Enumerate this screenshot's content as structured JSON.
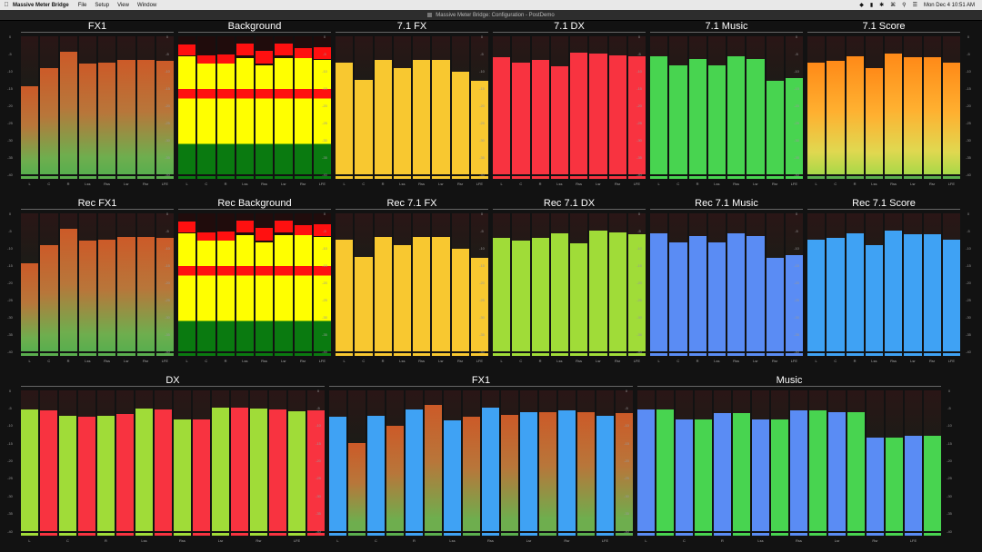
{
  "menubar": {
    "app_name": "Massive Meter Bridge",
    "menus": [
      "File",
      "Setup",
      "View",
      "Window"
    ],
    "date_time": "Mon Dec 4  10:51 AM"
  },
  "window": {
    "title": "Massive Meter Bridge: Configuration - PostDemo"
  },
  "scale_ticks": [
    "0",
    "-5",
    "-10",
    "-15",
    "-20",
    "-25",
    "-30",
    "-35",
    "-40"
  ],
  "channel_labels": [
    "L",
    "C",
    "R",
    "Lss",
    "Rss",
    "Lsr",
    "Rsr",
    "LFE"
  ],
  "colors": {
    "orange": "#cc6030",
    "yellow": "#f8c830",
    "red": "#f83340",
    "green": "#48d450",
    "lime": "#a0dc38",
    "blue": "#3fa2f4",
    "purple_blue": "#5a8cf4",
    "score_orange": "#ff9020"
  },
  "panels": [
    {
      "title": "FX1",
      "style": "fx1",
      "levels": [
        -14.5,
        -9.3,
        -4.6,
        -7.9,
        -7.5,
        -6.9,
        -6.9,
        -7.2
      ],
      "peaks": [
        -14.5,
        -9.3,
        -4.6,
        -7.9,
        -7.5,
        -6.9,
        -6.9,
        -7.2
      ]
    },
    {
      "title": "Background",
      "style": "stripes",
      "levels": [
        -5.9,
        -7.2,
        -7.5,
        -6.2,
        -8.4,
        -6.2,
        -6.2,
        -6.9
      ],
      "peaks": [
        -4.8,
        -7.0,
        -7.0,
        -4.8,
        -7.0,
        -4.8,
        -5.4,
        -5.7
      ]
    },
    {
      "title": "7.1 FX",
      "style": "yellow",
      "levels": [
        -7.6,
        -12.6,
        -6.9,
        -9.1,
        -6.9,
        -6.9,
        -10.2,
        -12.8
      ],
      "peaks": [
        -7.6,
        -12.6,
        -6.9,
        -9.1,
        -6.9,
        -6.9,
        -10.2,
        -12.8
      ]
    },
    {
      "title": "7.1 DX",
      "style": "red",
      "levels": [
        -6.1,
        -7.5,
        -6.9,
        -8.7,
        -4.8,
        -5.0,
        -5.4,
        -5.9
      ],
      "peaks": [
        -6.1,
        -7.5,
        -6.9,
        -8.7,
        -4.8,
        -5.0,
        -5.4,
        -5.9
      ]
    },
    {
      "title": "7.1 Music",
      "style": "green",
      "levels": [
        -5.7,
        -8.4,
        -6.5,
        -8.4,
        -5.9,
        -6.5,
        -12.8,
        -12.0
      ],
      "peaks": [
        -5.7,
        -8.4,
        -6.5,
        -8.4,
        -5.9,
        -6.5,
        -12.8,
        -12.0
      ]
    },
    {
      "title": "7.1 Score",
      "style": "score",
      "levels": [
        -7.6,
        -7.2,
        -5.7,
        -9.1,
        -5.0,
        -6.1,
        -6.1,
        -7.6
      ],
      "peaks": [
        -7.6,
        -7.2,
        -5.7,
        -9.1,
        -5.0,
        -6.1,
        -6.1,
        -7.6
      ]
    },
    {
      "title": "Rec FX1",
      "style": "fx1",
      "levels": [
        -14.5,
        -9.3,
        -4.6,
        -7.9,
        -7.5,
        -6.9,
        -6.9,
        -7.2
      ],
      "peaks": [
        -14.5,
        -9.3,
        -4.6,
        -7.9,
        -7.5,
        -6.9,
        -6.9,
        -7.2
      ]
    },
    {
      "title": "Rec Background",
      "style": "stripes",
      "levels": [
        -5.9,
        -7.2,
        -7.5,
        -6.2,
        -8.4,
        -6.2,
        -6.2,
        -6.9
      ],
      "peaks": [
        -4.8,
        -7.0,
        -7.0,
        -4.8,
        -7.0,
        -4.8,
        -5.4,
        -5.7
      ]
    },
    {
      "title": "Rec 7.1 FX",
      "style": "yellow",
      "levels": [
        -7.6,
        -12.6,
        -6.9,
        -9.1,
        -6.9,
        -6.9,
        -10.2,
        -12.8
      ],
      "peaks": [
        -7.6,
        -12.6,
        -6.9,
        -9.1,
        -6.9,
        -6.9,
        -10.2,
        -12.8
      ]
    },
    {
      "title": "Rec 7.1 DX",
      "style": "lime",
      "levels": [
        -7.2,
        -7.9,
        -7.2,
        -5.7,
        -8.6,
        -5.1,
        -5.4,
        -6.1
      ],
      "peaks": [
        -7.2,
        -7.9,
        -7.2,
        -5.7,
        -8.6,
        -5.1,
        -5.4,
        -6.1
      ]
    },
    {
      "title": "Rec 7.1 Music",
      "style": "blue",
      "levels": [
        -5.7,
        -8.4,
        -6.5,
        -8.4,
        -5.9,
        -6.5,
        -12.8,
        -12.0
      ],
      "peaks": [
        -5.7,
        -8.4,
        -6.5,
        -8.4,
        -5.9,
        -6.5,
        -12.8,
        -12.0
      ]
    },
    {
      "title": "Rec 7.1 Score",
      "style": "lightblue",
      "levels": [
        -7.6,
        -7.2,
        -5.7,
        -9.1,
        -5.0,
        -6.1,
        -6.1,
        -7.6
      ],
      "peaks": [
        -7.6,
        -7.2,
        -5.7,
        -9.1,
        -5.0,
        -6.1,
        -6.1,
        -7.6
      ]
    },
    {
      "title": "DX",
      "style": "dx",
      "levels": [
        -5.5,
        -5.7,
        -7.3,
        -7.6,
        -7.2,
        -6.7,
        -5.1,
        -5.4,
        -8.2,
        -8.3,
        -4.9,
        -5.0,
        -5.1,
        -5.4,
        -6.0,
        -5.7
      ],
      "peaks": [
        -5.5,
        -5.7,
        -7.3,
        -7.6,
        -7.2,
        -6.7,
        -5.1,
        -5.4,
        -8.2,
        -8.3,
        -4.9,
        -5.0,
        -5.1,
        -5.4,
        -6.0,
        -5.7
      ]
    },
    {
      "title": "FX1",
      "style": "fx1b",
      "levels": [
        -7.6,
        -14.9,
        -7.2,
        -10.0,
        -5.4,
        -4.1,
        -8.5,
        -7.5,
        -4.8,
        -6.9,
        -6.1,
        -6.1,
        -5.7,
        -6.1,
        -7.2,
        -6.5
      ],
      "peaks": [
        -7.6,
        -14.9,
        -7.2,
        -10.0,
        -5.4,
        -4.1,
        -8.5,
        -7.5,
        -4.8,
        -6.9,
        -6.1,
        -6.1,
        -5.7,
        -6.1,
        -7.2,
        -6.5
      ]
    },
    {
      "title": "Music",
      "style": "music",
      "levels": [
        -5.4,
        -5.4,
        -8.2,
        -8.2,
        -6.5,
        -6.5,
        -8.2,
        -8.2,
        -5.7,
        -5.7,
        -6.1,
        -6.1,
        -13.3,
        -13.5,
        -13.0,
        -13.0
      ],
      "peaks": [
        -5.4,
        -5.4,
        -8.2,
        -8.2,
        -6.5,
        -6.5,
        -8.2,
        -8.2,
        -5.7,
        -5.7,
        -6.1,
        -6.1,
        -13.3,
        -13.5,
        -13.0,
        -13.0
      ]
    }
  ],
  "row3_channel_labels": [
    "L",
    "C",
    "R",
    "Lss",
    "Rss",
    "Lsr",
    "Rsr",
    "LFE"
  ]
}
